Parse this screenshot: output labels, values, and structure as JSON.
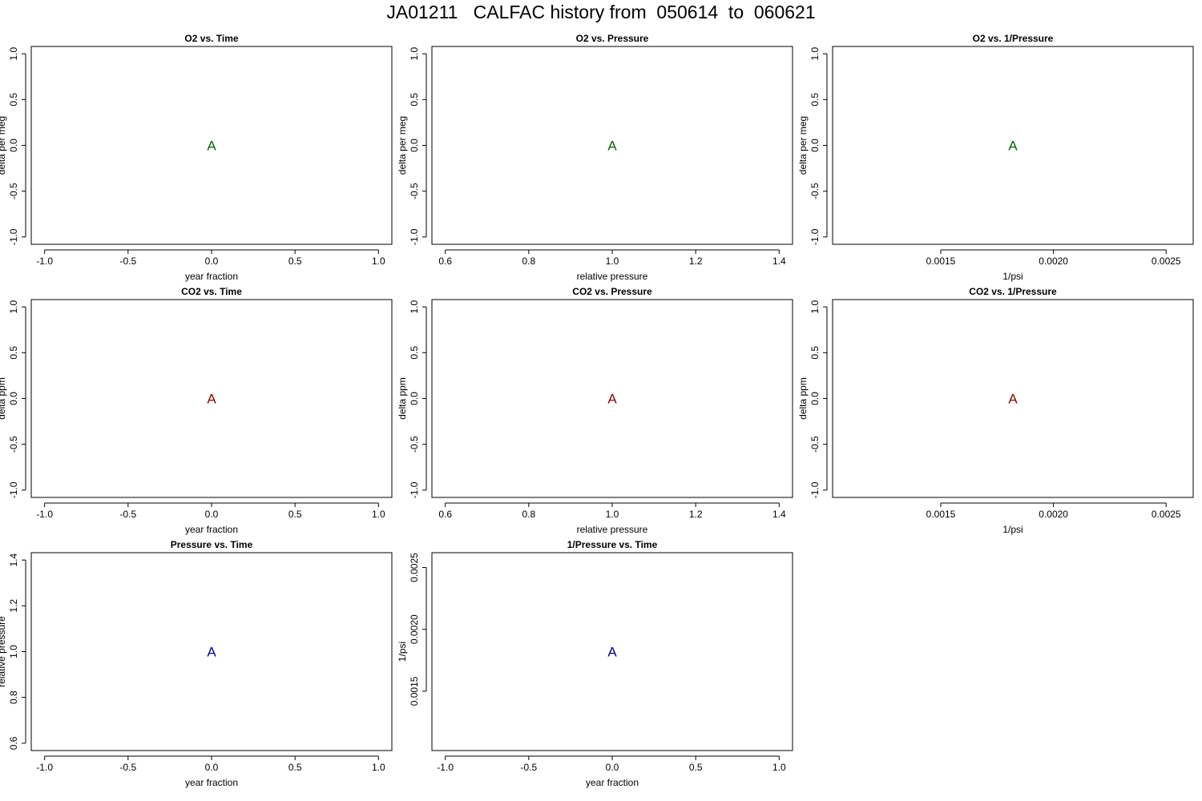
{
  "title": "JA01211   CALFAC history from  050614  to  060621",
  "chart_data": [
    {
      "type": "scatter",
      "title": "O2 vs. Time",
      "xlabel": "year fraction",
      "ylabel": "delta per meg",
      "xlim": [
        -1.08,
        1.08
      ],
      "ylim": [
        -1.08,
        1.08
      ],
      "xticks": [
        {
          "value": -1.0,
          "label": "-1.0"
        },
        {
          "value": -0.5,
          "label": "-0.5"
        },
        {
          "value": 0.0,
          "label": "0.0"
        },
        {
          "value": 0.5,
          "label": "0.5"
        },
        {
          "value": 1.0,
          "label": "1.0"
        }
      ],
      "yticks": [
        {
          "value": -1.0,
          "label": "-1.0"
        },
        {
          "value": -0.5,
          "label": "-0.5"
        },
        {
          "value": 0.0,
          "label": "0.0"
        },
        {
          "value": 0.5,
          "label": "0.5"
        },
        {
          "value": 1.0,
          "label": "1.0"
        }
      ],
      "points": [
        {
          "x": 0.0,
          "y": 0.0,
          "label": "A"
        }
      ],
      "color": "#006400"
    },
    {
      "type": "scatter",
      "title": "O2 vs. Pressure",
      "xlabel": "relative pressure",
      "ylabel": "delta per meg",
      "xlim": [
        0.568,
        1.432
      ],
      "ylim": [
        -1.08,
        1.08
      ],
      "xticks": [
        {
          "value": 0.6,
          "label": "0.6"
        },
        {
          "value": 0.8,
          "label": "0.8"
        },
        {
          "value": 1.0,
          "label": "1.0"
        },
        {
          "value": 1.2,
          "label": "1.2"
        },
        {
          "value": 1.4,
          "label": "1.4"
        }
      ],
      "yticks": [
        {
          "value": -1.0,
          "label": "-1.0"
        },
        {
          "value": -0.5,
          "label": "-0.5"
        },
        {
          "value": 0.0,
          "label": "0.0"
        },
        {
          "value": 0.5,
          "label": "0.5"
        },
        {
          "value": 1.0,
          "label": "1.0"
        }
      ],
      "points": [
        {
          "x": 1.0,
          "y": 0.0,
          "label": "A"
        }
      ],
      "color": "#006400"
    },
    {
      "type": "scatter",
      "title": "O2 vs. 1/Pressure",
      "xlabel": "1/psi",
      "ylabel": "delta per meg",
      "xlim": [
        0.00102,
        0.00262
      ],
      "ylim": [
        -1.08,
        1.08
      ],
      "xticks": [
        {
          "value": 0.0015,
          "label": "0.0015"
        },
        {
          "value": 0.002,
          "label": "0.0020"
        },
        {
          "value": 0.0025,
          "label": "0.0025"
        }
      ],
      "yticks": [
        {
          "value": -1.0,
          "label": "-1.0"
        },
        {
          "value": -0.5,
          "label": "-0.5"
        },
        {
          "value": 0.0,
          "label": "0.0"
        },
        {
          "value": 0.5,
          "label": "0.5"
        },
        {
          "value": 1.0,
          "label": "1.0"
        }
      ],
      "points": [
        {
          "x": 0.00182,
          "y": 0.0,
          "label": "A"
        }
      ],
      "color": "#006400"
    },
    {
      "type": "scatter",
      "title": "CO2 vs. Time",
      "xlabel": "year fraction",
      "ylabel": "delta ppm",
      "xlim": [
        -1.08,
        1.08
      ],
      "ylim": [
        -1.08,
        1.08
      ],
      "xticks": [
        {
          "value": -1.0,
          "label": "-1.0"
        },
        {
          "value": -0.5,
          "label": "-0.5"
        },
        {
          "value": 0.0,
          "label": "0.0"
        },
        {
          "value": 0.5,
          "label": "0.5"
        },
        {
          "value": 1.0,
          "label": "1.0"
        }
      ],
      "yticks": [
        {
          "value": -1.0,
          "label": "-1.0"
        },
        {
          "value": -0.5,
          "label": "-0.5"
        },
        {
          "value": 0.0,
          "label": "0.0"
        },
        {
          "value": 0.5,
          "label": "0.5"
        },
        {
          "value": 1.0,
          "label": "1.0"
        }
      ],
      "points": [
        {
          "x": 0.0,
          "y": 0.0,
          "label": "A"
        }
      ],
      "color": "#8b0000"
    },
    {
      "type": "scatter",
      "title": "CO2 vs. Pressure",
      "xlabel": "relative pressure",
      "ylabel": "delta ppm",
      "xlim": [
        0.568,
        1.432
      ],
      "ylim": [
        -1.08,
        1.08
      ],
      "xticks": [
        {
          "value": 0.6,
          "label": "0.6"
        },
        {
          "value": 0.8,
          "label": "0.8"
        },
        {
          "value": 1.0,
          "label": "1.0"
        },
        {
          "value": 1.2,
          "label": "1.2"
        },
        {
          "value": 1.4,
          "label": "1.4"
        }
      ],
      "yticks": [
        {
          "value": -1.0,
          "label": "-1.0"
        },
        {
          "value": -0.5,
          "label": "-0.5"
        },
        {
          "value": 0.0,
          "label": "0.0"
        },
        {
          "value": 0.5,
          "label": "0.5"
        },
        {
          "value": 1.0,
          "label": "1.0"
        }
      ],
      "points": [
        {
          "x": 1.0,
          "y": 0.0,
          "label": "A"
        }
      ],
      "color": "#8b0000"
    },
    {
      "type": "scatter",
      "title": "CO2 vs. 1/Pressure",
      "xlabel": "1/psi",
      "ylabel": "delta ppm",
      "xlim": [
        0.00102,
        0.00262
      ],
      "ylim": [
        -1.08,
        1.08
      ],
      "xticks": [
        {
          "value": 0.0015,
          "label": "0.0015"
        },
        {
          "value": 0.002,
          "label": "0.0020"
        },
        {
          "value": 0.0025,
          "label": "0.0025"
        }
      ],
      "yticks": [
        {
          "value": -1.0,
          "label": "-1.0"
        },
        {
          "value": -0.5,
          "label": "-0.5"
        },
        {
          "value": 0.0,
          "label": "0.0"
        },
        {
          "value": 0.5,
          "label": "0.5"
        },
        {
          "value": 1.0,
          "label": "1.0"
        }
      ],
      "points": [
        {
          "x": 0.00182,
          "y": 0.0,
          "label": "A"
        }
      ],
      "color": "#8b0000"
    },
    {
      "type": "scatter",
      "title": "Pressure vs. Time",
      "xlabel": "year fraction",
      "ylabel": "relative pressure",
      "xlim": [
        -1.08,
        1.08
      ],
      "ylim": [
        0.568,
        1.432
      ],
      "xticks": [
        {
          "value": -1.0,
          "label": "-1.0"
        },
        {
          "value": -0.5,
          "label": "-0.5"
        },
        {
          "value": 0.0,
          "label": "0.0"
        },
        {
          "value": 0.5,
          "label": "0.5"
        },
        {
          "value": 1.0,
          "label": "1.0"
        }
      ],
      "yticks": [
        {
          "value": 0.6,
          "label": "0.6"
        },
        {
          "value": 0.8,
          "label": "0.8"
        },
        {
          "value": 1.0,
          "label": "1.0"
        },
        {
          "value": 1.2,
          "label": "1.2"
        },
        {
          "value": 1.4,
          "label": "1.4"
        }
      ],
      "points": [
        {
          "x": 0.0,
          "y": 1.0,
          "label": "A"
        }
      ],
      "color": "#00008b"
    },
    {
      "type": "scatter",
      "title": "1/Pressure vs. Time",
      "xlabel": "year fraction",
      "ylabel": "1/psi",
      "xlim": [
        -1.08,
        1.08
      ],
      "ylim": [
        0.00102,
        0.00262
      ],
      "xticks": [
        {
          "value": -1.0,
          "label": "-1.0"
        },
        {
          "value": -0.5,
          "label": "-0.5"
        },
        {
          "value": 0.0,
          "label": "0.0"
        },
        {
          "value": 0.5,
          "label": "0.5"
        },
        {
          "value": 1.0,
          "label": "1.0"
        }
      ],
      "yticks": [
        {
          "value": 0.0015,
          "label": "0.0015"
        },
        {
          "value": 0.002,
          "label": "0.0020"
        },
        {
          "value": 0.0025,
          "label": "0.0025"
        }
      ],
      "points": [
        {
          "x": 0.0,
          "y": 0.00182,
          "label": "A"
        }
      ],
      "color": "#00008b"
    }
  ]
}
